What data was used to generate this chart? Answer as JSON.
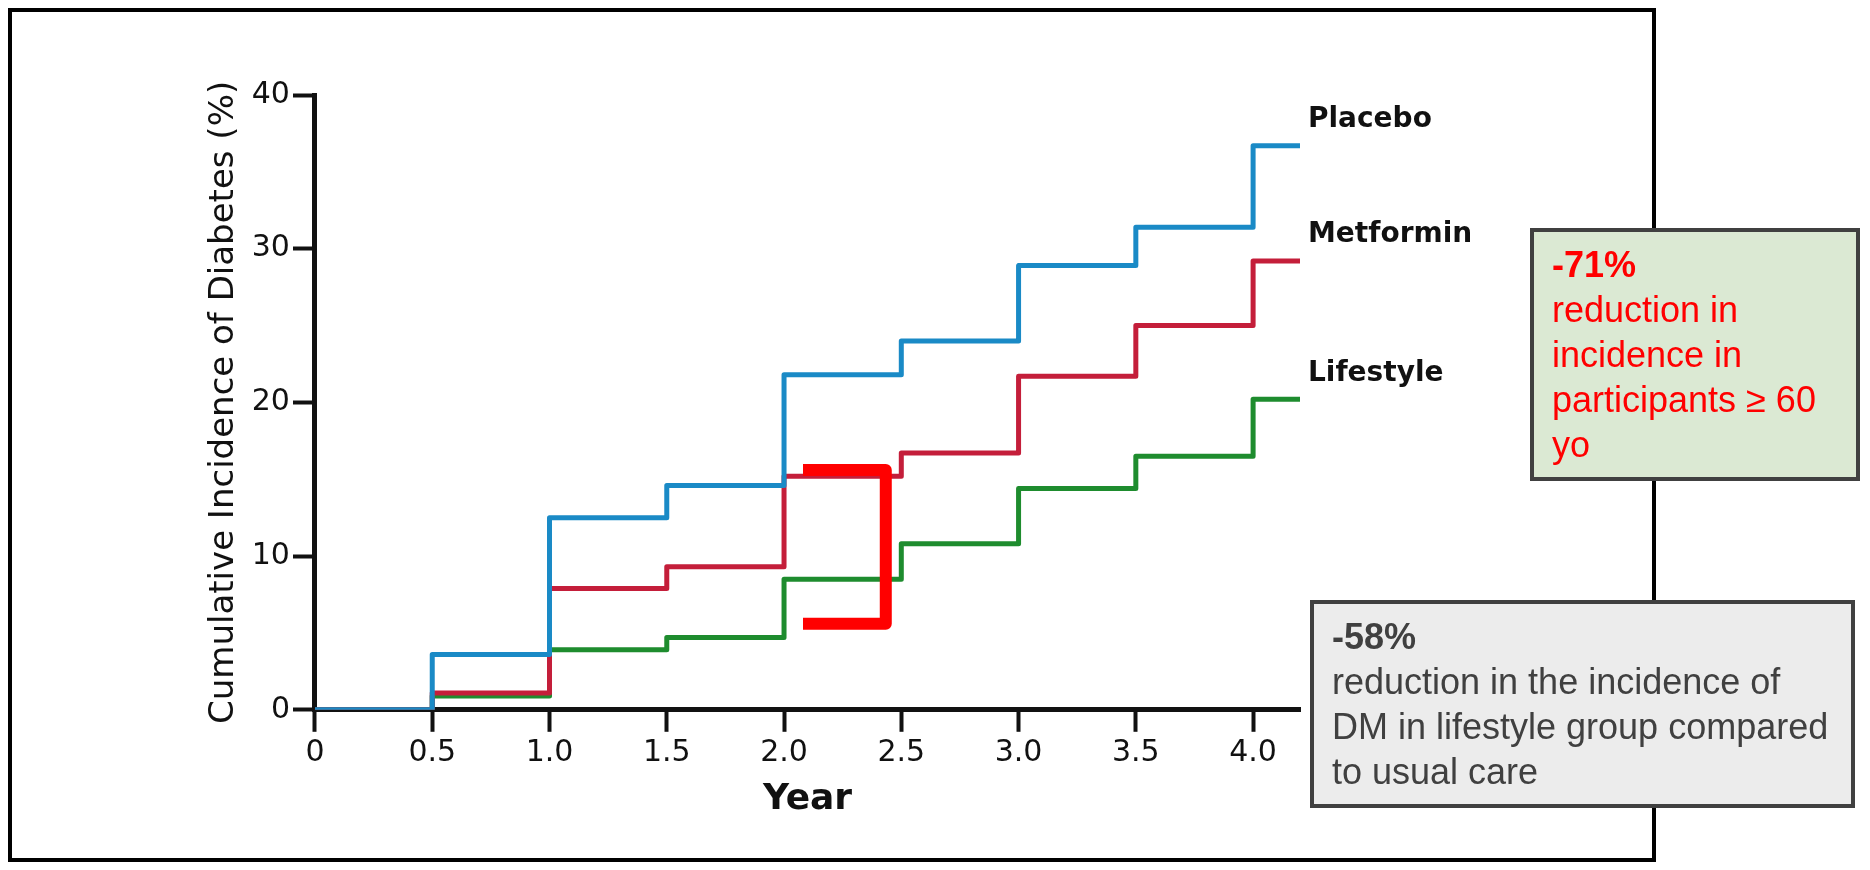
{
  "chart_data": {
    "type": "step",
    "xlabel": "Year",
    "ylabel": "Cumulative Incidence of Diabetes (%)",
    "x": [
      0,
      0.5,
      1,
      1.5,
      2,
      2.5,
      3,
      3.5,
      4,
      4.2
    ],
    "series": [
      {
        "name": "Placebo",
        "color": "#1a8ac6",
        "values": [
          0,
          3.6,
          12.5,
          14.6,
          21.8,
          24.0,
          28.9,
          31.4,
          36.7,
          36.7
        ]
      },
      {
        "name": "Metformin",
        "color": "#c41e3a",
        "values": [
          0,
          1.1,
          7.9,
          9.3,
          15.2,
          16.7,
          21.7,
          25.0,
          29.2,
          29.2
        ]
      },
      {
        "name": "Lifestyle",
        "color": "#1e8c2e",
        "values": [
          0,
          0.9,
          3.9,
          4.7,
          8.5,
          10.8,
          14.4,
          16.5,
          20.2,
          20.2
        ]
      }
    ],
    "xlim": [
      0,
      4.2
    ],
    "xticks": [
      0,
      0.5,
      {
        "value": 1,
        "label": "1.0"
      },
      1.5,
      {
        "value": 2,
        "label": "2.0"
      },
      2.5,
      {
        "value": 3,
        "label": "3.0"
      },
      3.5,
      {
        "value": 4,
        "label": "4.0"
      }
    ],
    "ylim": [
      0,
      40
    ],
    "yticks": [
      0,
      10,
      20,
      30,
      40
    ],
    "grid": false,
    "legend": false,
    "marker": "none",
    "line_style": "solid",
    "annotations": [
      "-58%",
      "reduction in the incidence of DM in lifestyle group compared to usual care",
      "-71%",
      "reduction in incidence in participants ≥ 60 yo"
    ]
  }
}
